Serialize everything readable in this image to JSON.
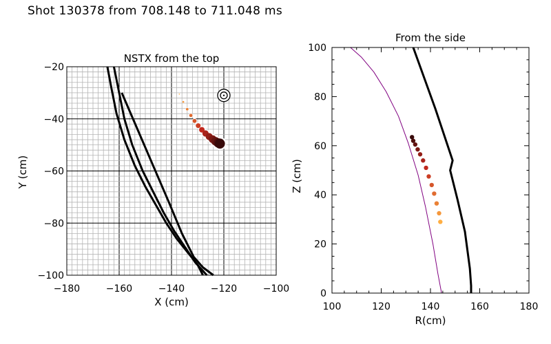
{
  "page": {
    "title": "Shot 130378 from 708.148 to 711.048 ms"
  },
  "colors": {
    "grid_minor": "#b4b4b4",
    "grid_major": "#000000",
    "wall": "#000000",
    "inner": "#800080",
    "trail_start": "#ffae42",
    "trail_mid": "#c0281e",
    "trail_end": "#380a0a"
  },
  "chart_data": [
    {
      "type": "scatter",
      "title": "NSTX from the top",
      "xlabel": "X (cm)",
      "ylabel": "Y (cm)",
      "xlim": [
        -180,
        -100
      ],
      "ylim": [
        -100,
        -20
      ],
      "x_ticks": [
        -180,
        -160,
        -140,
        -120,
        -100
      ],
      "y_ticks": [
        -100,
        -80,
        -60,
        -40,
        -20
      ],
      "x_tick_labels": [
        "−180",
        "−160",
        "−140",
        "−120",
        "−100"
      ],
      "y_tick_labels": [
        "−100",
        "−80",
        "−60",
        "−40",
        "−20"
      ],
      "grid": true,
      "curves": [
        {
          "name": "wall-outer",
          "x": [
            -162,
            -160,
            -158,
            -155,
            -151,
            -147,
            -143,
            -139,
            -135,
            -131,
            -126.5
          ],
          "y": [
            -20,
            -30,
            -40,
            -50,
            -60,
            -68,
            -76,
            -83,
            -89,
            -95,
            -100
          ]
        },
        {
          "name": "wall-inner",
          "x": [
            -164.5,
            -163,
            -161,
            -158,
            -154,
            -150,
            -146,
            -142,
            -138,
            -134,
            -130,
            -128
          ],
          "y": [
            -20,
            -28,
            -38,
            -48,
            -58,
            -66,
            -73,
            -80,
            -86,
            -91,
            -96,
            -100
          ]
        },
        {
          "name": "wall-cross",
          "x": [
            -159,
            -153,
            -147,
            -141,
            -136,
            -131.5,
            -128,
            -124
          ],
          "y": [
            -30,
            -44,
            -58,
            -72,
            -84,
            -93,
            -97,
            -100
          ]
        }
      ],
      "trail": {
        "x": [
          -137,
          -135.5,
          -134,
          -132.6,
          -131.2,
          -129.8,
          -128.4,
          -127,
          -125.6,
          -124.3,
          -123.2,
          -122.2,
          -121.5
        ],
        "y": [
          -30.5,
          -33.5,
          -36.3,
          -38.7,
          -40.8,
          -42.6,
          -44.2,
          -45.6,
          -46.8,
          -47.8,
          -48.6,
          -49.2,
          -49.5
        ]
      },
      "target": {
        "x": -120,
        "y": -31
      }
    },
    {
      "type": "line",
      "title": "From the side",
      "xlabel": "R(cm)",
      "ylabel": "Z (cm)",
      "xlim": [
        100,
        180
      ],
      "ylim": [
        0,
        100
      ],
      "x_ticks": [
        100,
        120,
        140,
        160,
        180
      ],
      "y_ticks": [
        0,
        20,
        40,
        60,
        80,
        100
      ],
      "x_tick_labels": [
        "100",
        "120",
        "140",
        "160",
        "180"
      ],
      "y_tick_labels": [
        "0",
        "20",
        "40",
        "60",
        "80",
        "100"
      ],
      "curves": [
        {
          "name": "vessel-wall",
          "r": [
            133,
            142,
            149,
            148,
            151,
            154,
            156,
            156.5,
            156.5
          ],
          "z": [
            100,
            75,
            54,
            50,
            38,
            25,
            10,
            3,
            0
          ]
        },
        {
          "name": "inner-boundary",
          "r": [
            107.5,
            112,
            117,
            122,
            127,
            131,
            135,
            138,
            141,
            143,
            144.5
          ],
          "z": [
            100,
            96,
            90,
            82,
            72,
            61,
            48,
            35,
            20,
            8,
            0
          ]
        }
      ],
      "trail": {
        "r": [
          144,
          143.5,
          142.5,
          141.5,
          140.5,
          139.3,
          138.2,
          137,
          135.8,
          134.8,
          133.8,
          133,
          132.5
        ],
        "z": [
          29,
          32.5,
          36.5,
          40.5,
          44,
          47.5,
          51,
          54,
          56.5,
          58.5,
          60.5,
          62,
          63.5
        ]
      }
    }
  ]
}
